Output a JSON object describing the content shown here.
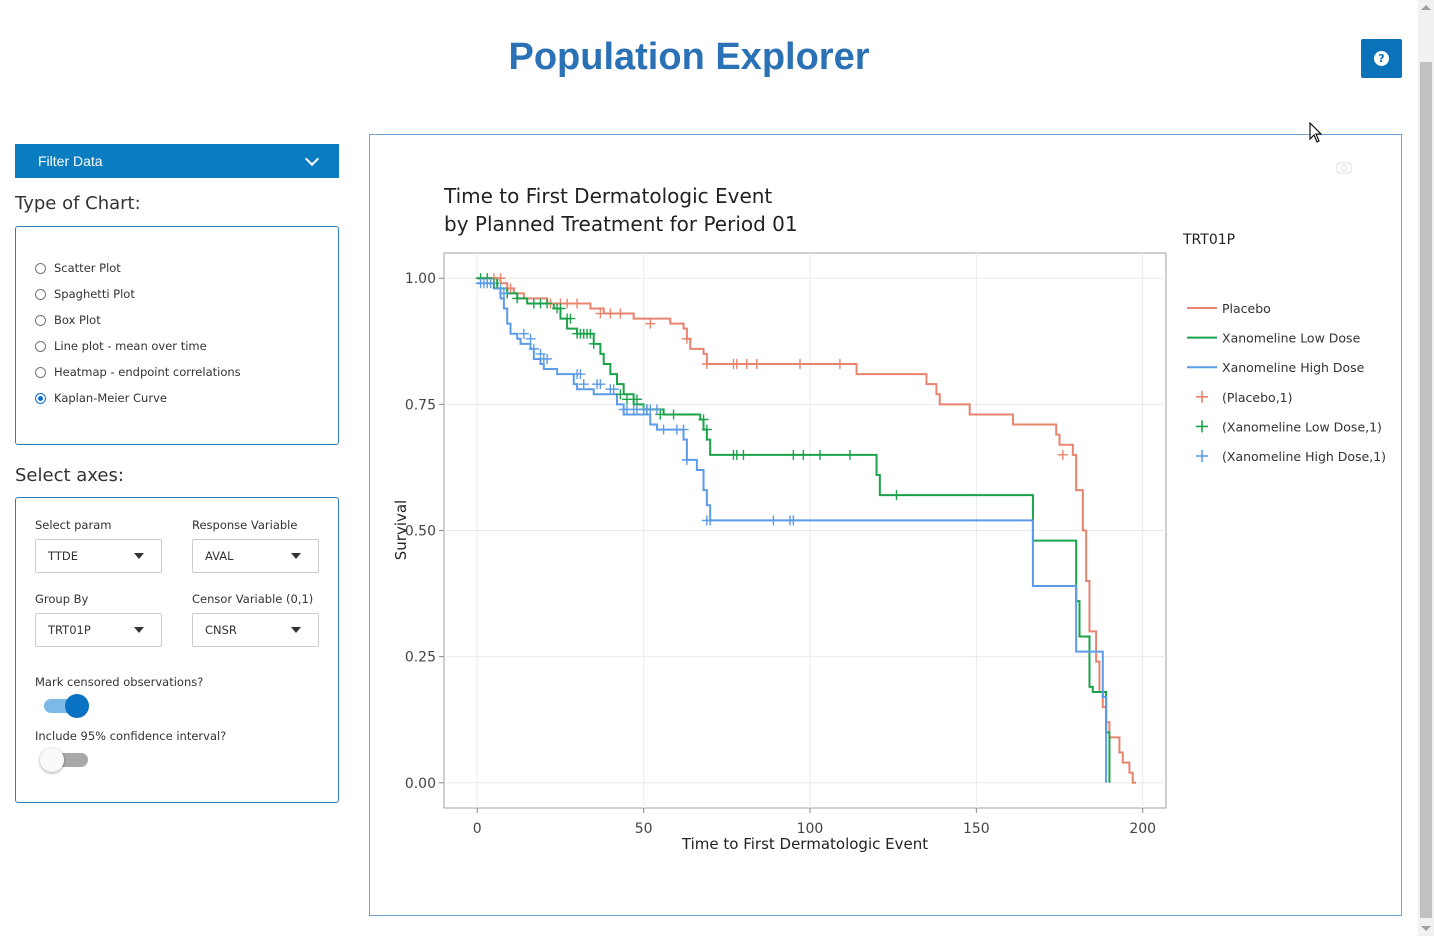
{
  "app": {
    "title": "Population Explorer",
    "help_icon": "question-circle-icon",
    "help_glyph": "?"
  },
  "sidebar": {
    "filter_label": "Filter Data",
    "chart_type_label": "Type of Chart:",
    "chart_types": [
      {
        "label": "Scatter Plot",
        "checked": false
      },
      {
        "label": "Spaghetti Plot",
        "checked": false
      },
      {
        "label": "Box Plot",
        "checked": false
      },
      {
        "label": "Line plot - mean over time",
        "checked": false
      },
      {
        "label": "Heatmap - endpoint correlations",
        "checked": false
      },
      {
        "label": "Kaplan-Meier Curve",
        "checked": true
      }
    ],
    "axes_label": "Select axes:",
    "fields": {
      "param": {
        "label": "Select param",
        "value": "TTDE"
      },
      "response": {
        "label": "Response Variable",
        "value": "AVAL"
      },
      "group": {
        "label": "Group By",
        "value": "TRT01P"
      },
      "censor": {
        "label": "Censor Variable (0,1)",
        "value": "CNSR"
      }
    },
    "mark_censored": {
      "label": "Mark censored observations?",
      "on": true
    },
    "conf_int": {
      "label": "Include 95% confidence interval?",
      "on": false
    }
  },
  "colors": {
    "accent": "#0a7dc0",
    "placebo": "#e8836e",
    "low": "#1aa34a",
    "high": "#5b9be8"
  },
  "chart_data": {
    "type": "line",
    "title_line1": "Time to First Dermatologic Event",
    "title_line2": "by Planned Treatment for Period 01",
    "xlabel": "Time to First Dermatologic Event",
    "ylabel": "Survival",
    "xlim": [
      -10,
      207
    ],
    "ylim": [
      -0.05,
      1.05
    ],
    "xticks": [
      "0",
      "50",
      "100",
      "150",
      "200"
    ],
    "xtick_values": [
      0,
      50,
      100,
      150,
      200
    ],
    "yticks": [
      "0.00",
      "0.25",
      "0.50",
      "0.75",
      "1.00"
    ],
    "ytick_values": [
      0,
      0.25,
      0.5,
      0.75,
      1.0
    ],
    "grid": true,
    "legend_title": "TRT01P",
    "legend": [
      "Placebo",
      "Xanomeline Low Dose",
      "Xanomeline High Dose",
      "(Placebo,1)",
      "(Xanomeline Low Dose,1)",
      "(Xanomeline High Dose,1)"
    ],
    "series": [
      {
        "name": "Placebo",
        "color": "#e8836e",
        "steps": [
          [
            0,
            1.0
          ],
          [
            7,
            0.99
          ],
          [
            9,
            0.98
          ],
          [
            11,
            0.97
          ],
          [
            14,
            0.96
          ],
          [
            21,
            0.95
          ],
          [
            34,
            0.94
          ],
          [
            38,
            0.93
          ],
          [
            47,
            0.92
          ],
          [
            58,
            0.91
          ],
          [
            62,
            0.9
          ],
          [
            63,
            0.88
          ],
          [
            64,
            0.86
          ],
          [
            68,
            0.85
          ],
          [
            69,
            0.83
          ],
          [
            114,
            0.81
          ],
          [
            135,
            0.79
          ],
          [
            138,
            0.77
          ],
          [
            139,
            0.75
          ],
          [
            148,
            0.73
          ],
          [
            161,
            0.71
          ],
          [
            174,
            0.69
          ],
          [
            175,
            0.67
          ],
          [
            179,
            0.65
          ],
          [
            180,
            0.58
          ],
          [
            182,
            0.5
          ],
          [
            183,
            0.4
          ],
          [
            184,
            0.3
          ],
          [
            186,
            0.24
          ],
          [
            187,
            0.18
          ],
          [
            188,
            0.15
          ],
          [
            189,
            0.12
          ],
          [
            190,
            0.09
          ],
          [
            193,
            0.06
          ],
          [
            194,
            0.04
          ],
          [
            196,
            0.02
          ],
          [
            197,
            0.0
          ]
        ],
        "end_x": 198,
        "censored": [
          [
            5,
            1.0
          ],
          [
            7,
            1.0
          ],
          [
            10,
            0.98
          ],
          [
            22,
            0.95
          ],
          [
            25,
            0.95
          ],
          [
            27,
            0.95
          ],
          [
            30,
            0.95
          ],
          [
            37,
            0.93
          ],
          [
            40,
            0.93
          ],
          [
            43,
            0.93
          ],
          [
            52,
            0.91
          ],
          [
            63,
            0.88
          ],
          [
            69,
            0.83
          ],
          [
            77,
            0.83
          ],
          [
            78,
            0.83
          ],
          [
            81,
            0.83
          ],
          [
            84,
            0.83
          ],
          [
            97,
            0.83
          ],
          [
            109,
            0.83
          ],
          [
            176,
            0.65
          ]
        ]
      },
      {
        "name": "Xanomeline Low Dose",
        "color": "#1aa34a",
        "steps": [
          [
            0,
            1.0
          ],
          [
            6,
            0.98
          ],
          [
            9,
            0.97
          ],
          [
            12,
            0.96
          ],
          [
            15,
            0.95
          ],
          [
            23,
            0.94
          ],
          [
            25,
            0.92
          ],
          [
            27,
            0.9
          ],
          [
            30,
            0.89
          ],
          [
            35,
            0.87
          ],
          [
            37,
            0.85
          ],
          [
            38,
            0.83
          ],
          [
            40,
            0.81
          ],
          [
            42,
            0.79
          ],
          [
            44,
            0.77
          ],
          [
            47,
            0.75
          ],
          [
            50,
            0.74
          ],
          [
            56,
            0.73
          ],
          [
            67,
            0.72
          ],
          [
            68,
            0.7
          ],
          [
            69,
            0.68
          ],
          [
            70,
            0.65
          ],
          [
            120,
            0.61
          ],
          [
            121,
            0.57
          ],
          [
            167,
            0.48
          ],
          [
            180,
            0.36
          ],
          [
            181,
            0.29
          ],
          [
            184,
            0.19
          ],
          [
            185,
            0.18
          ],
          [
            189,
            0.1
          ],
          [
            190,
            0.0
          ]
        ],
        "end_x": 190,
        "censored": [
          [
            1,
            1.0
          ],
          [
            3,
            1.0
          ],
          [
            5,
            0.99
          ],
          [
            9,
            0.97
          ],
          [
            12,
            0.96
          ],
          [
            17,
            0.95
          ],
          [
            19,
            0.95
          ],
          [
            21,
            0.95
          ],
          [
            24,
            0.94
          ],
          [
            25,
            0.94
          ],
          [
            27,
            0.92
          ],
          [
            28,
            0.92
          ],
          [
            30,
            0.89
          ],
          [
            31,
            0.89
          ],
          [
            32,
            0.89
          ],
          [
            33,
            0.89
          ],
          [
            34,
            0.89
          ],
          [
            35,
            0.87
          ],
          [
            43,
            0.77
          ],
          [
            45,
            0.76
          ],
          [
            48,
            0.76
          ],
          [
            50,
            0.74
          ],
          [
            51,
            0.74
          ],
          [
            55,
            0.73
          ],
          [
            59,
            0.73
          ],
          [
            68,
            0.72
          ],
          [
            69,
            0.7
          ],
          [
            77,
            0.65
          ],
          [
            78,
            0.65
          ],
          [
            80,
            0.65
          ],
          [
            95,
            0.65
          ],
          [
            98,
            0.65
          ],
          [
            103,
            0.65
          ],
          [
            112,
            0.65
          ],
          [
            126,
            0.57
          ]
        ]
      },
      {
        "name": "Xanomeline High Dose",
        "color": "#5b9be8",
        "steps": [
          [
            0,
            0.99
          ],
          [
            5,
            0.98
          ],
          [
            7,
            0.96
          ],
          [
            8,
            0.94
          ],
          [
            9,
            0.91
          ],
          [
            10,
            0.89
          ],
          [
            12,
            0.88
          ],
          [
            13,
            0.87
          ],
          [
            16,
            0.86
          ],
          [
            17,
            0.84
          ],
          [
            19,
            0.83
          ],
          [
            20,
            0.82
          ],
          [
            24,
            0.81
          ],
          [
            29,
            0.79
          ],
          [
            30,
            0.78
          ],
          [
            35,
            0.77
          ],
          [
            42,
            0.75
          ],
          [
            44,
            0.73
          ],
          [
            52,
            0.71
          ],
          [
            54,
            0.7
          ],
          [
            62,
            0.68
          ],
          [
            63,
            0.64
          ],
          [
            66,
            0.62
          ],
          [
            68,
            0.58
          ],
          [
            69,
            0.55
          ],
          [
            70,
            0.52
          ],
          [
            167,
            0.39
          ],
          [
            180,
            0.26
          ],
          [
            188,
            0.17
          ],
          [
            189,
            0.0
          ]
        ],
        "end_x": 189,
        "censored": [
          [
            1,
            0.99
          ],
          [
            2,
            0.99
          ],
          [
            3,
            0.99
          ],
          [
            4,
            0.99
          ],
          [
            7,
            0.98
          ],
          [
            8,
            0.97
          ],
          [
            14,
            0.89
          ],
          [
            16,
            0.88
          ],
          [
            17,
            0.86
          ],
          [
            19,
            0.85
          ],
          [
            20,
            0.84
          ],
          [
            21,
            0.84
          ],
          [
            30,
            0.81
          ],
          [
            31,
            0.81
          ],
          [
            32,
            0.79
          ],
          [
            36,
            0.79
          ],
          [
            37,
            0.79
          ],
          [
            40,
            0.78
          ],
          [
            41,
            0.78
          ],
          [
            44,
            0.74
          ],
          [
            45,
            0.74
          ],
          [
            47,
            0.74
          ],
          [
            48,
            0.74
          ],
          [
            50,
            0.74
          ],
          [
            51,
            0.74
          ],
          [
            52,
            0.74
          ],
          [
            54,
            0.74
          ],
          [
            56,
            0.7
          ],
          [
            60,
            0.7
          ],
          [
            62,
            0.7
          ],
          [
            63,
            0.64
          ],
          [
            69,
            0.52
          ],
          [
            70,
            0.52
          ],
          [
            89,
            0.52
          ],
          [
            94,
            0.52
          ],
          [
            95,
            0.52
          ]
        ]
      }
    ]
  }
}
